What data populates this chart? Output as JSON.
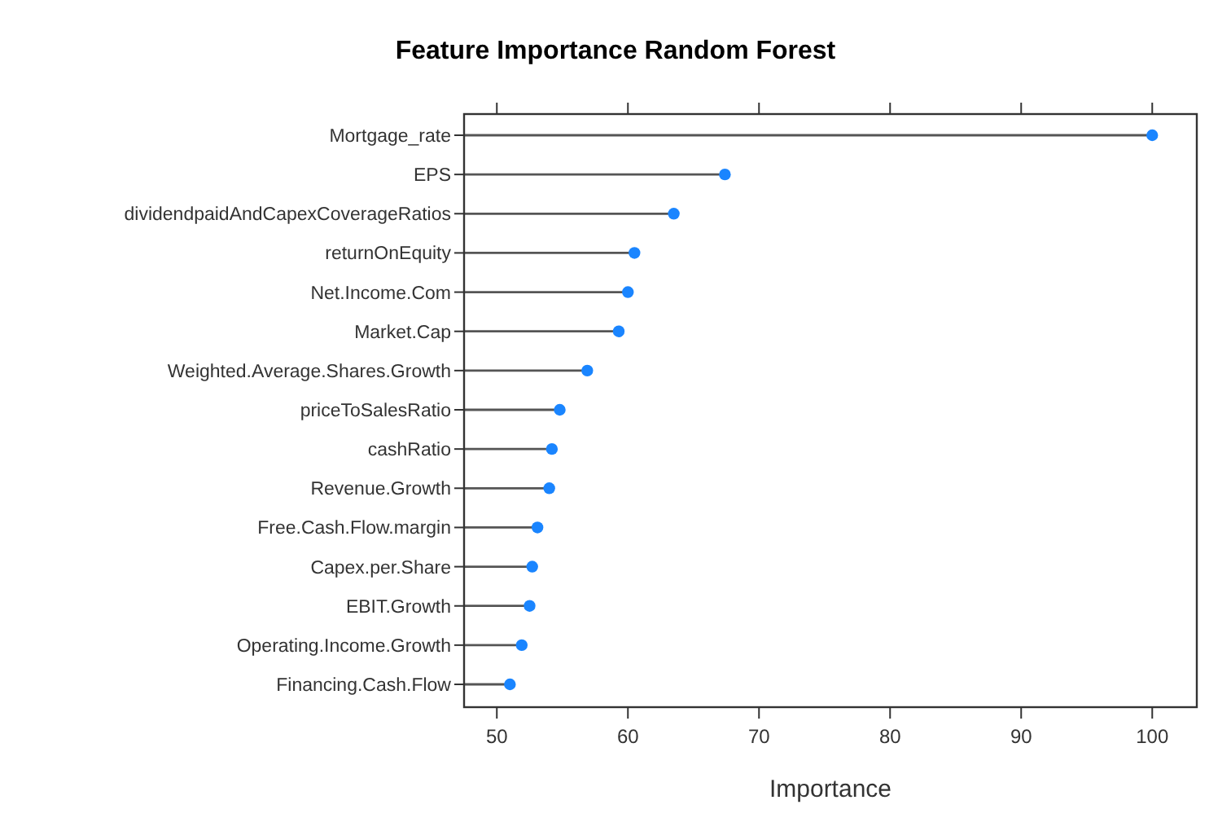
{
  "chart_data": {
    "type": "lollipop",
    "orientation": "horizontal",
    "title": "Feature Importance Random Forest",
    "xlabel": "Importance",
    "categories": [
      "Mortgage_rate",
      "EPS",
      "dividendpaidAndCapexCoverageRatios",
      "returnOnEquity",
      "Net.Income.Com",
      "Market.Cap",
      "Weighted.Average.Shares.Growth",
      "priceToSalesRatio",
      "cashRatio",
      "Revenue.Growth",
      "Free.Cash.Flow.margin",
      "Capex.per.Share",
      "EBIT.Growth",
      "Operating.Income.Growth",
      "Financing.Cash.Flow"
    ],
    "values": [
      100,
      67.4,
      63.5,
      60.5,
      60.0,
      59.3,
      56.9,
      54.8,
      54.2,
      54.0,
      53.1,
      52.7,
      52.5,
      51.9,
      51.0
    ],
    "color": "#1a85ff",
    "marker": "circle",
    "grid": false,
    "xlim": [
      47.5,
      103.4
    ],
    "xticks": [
      50,
      60,
      70,
      80,
      90,
      100
    ]
  }
}
